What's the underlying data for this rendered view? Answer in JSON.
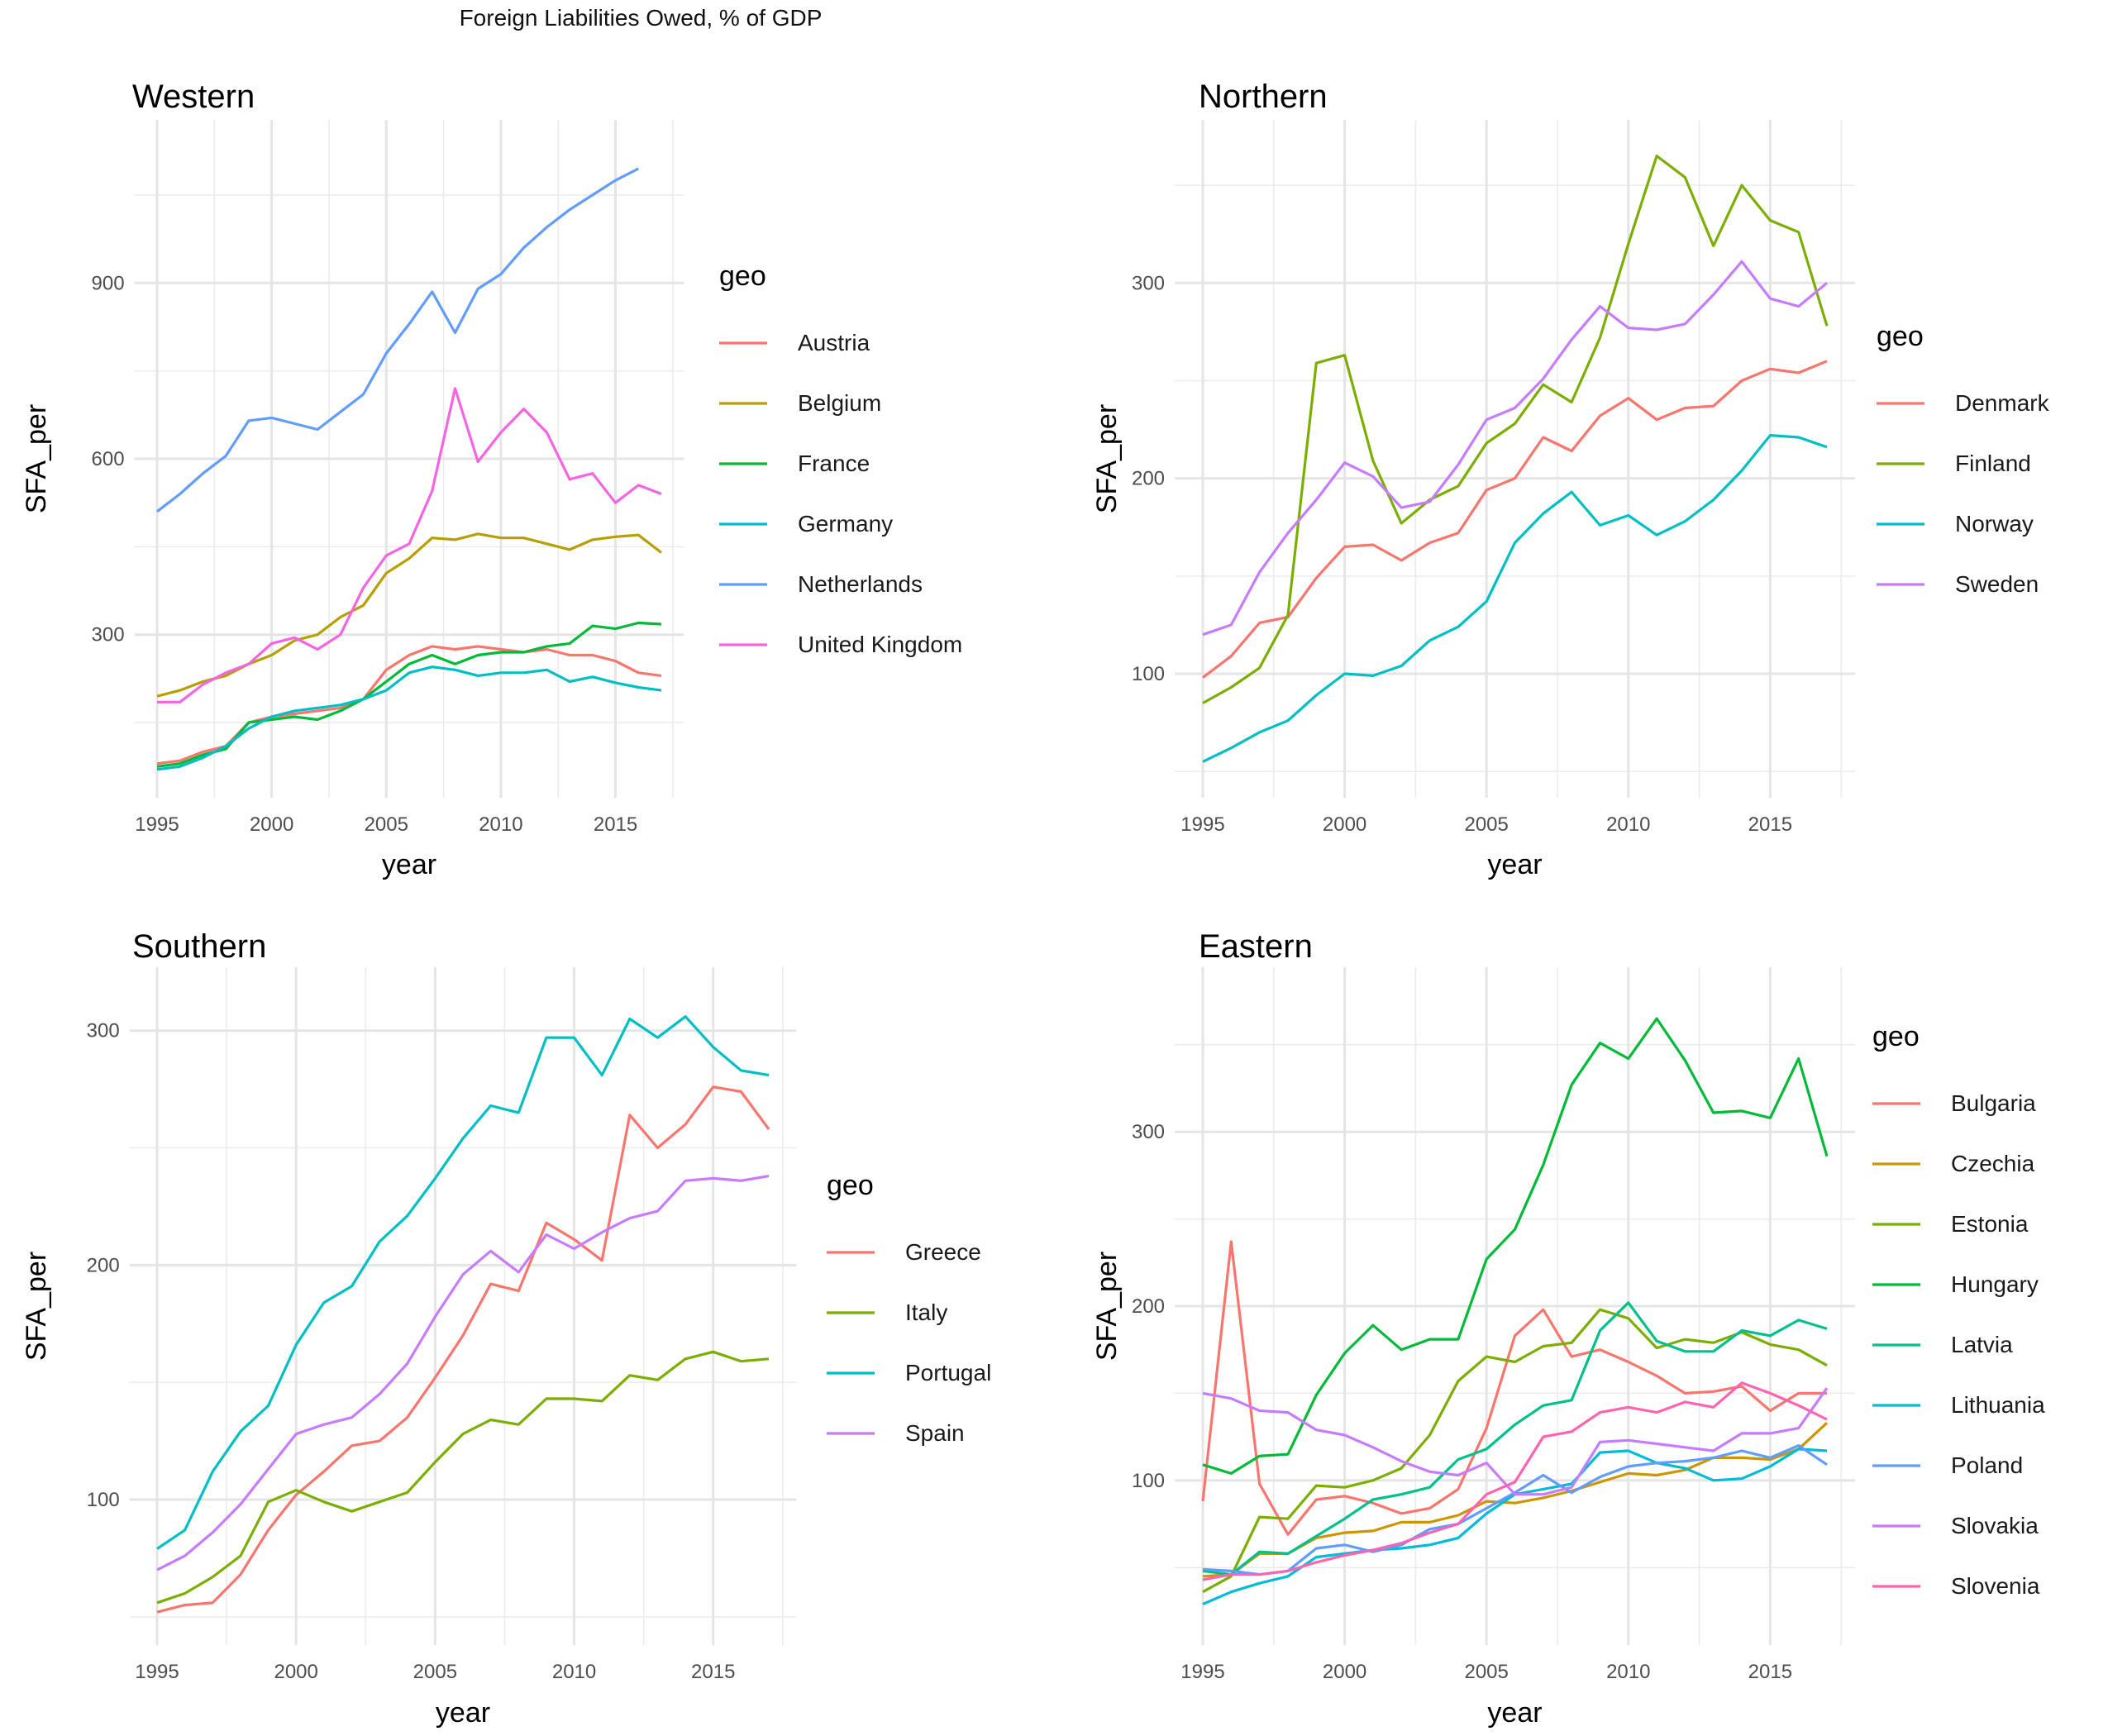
{
  "title": "Foreign Liabilities Owed, % of GDP",
  "chart_data": [
    {
      "type": "line",
      "title": "Western",
      "xlabel": "year",
      "ylabel": "SFA_per",
      "legend_title": "geo",
      "legend_position": "right",
      "xlim": [
        1995,
        2017
      ],
      "ylim": [
        50,
        1150
      ],
      "x_ticks": [
        1995,
        2000,
        2005,
        2010,
        2015
      ],
      "y_ticks": [
        300,
        600,
        900
      ],
      "x": [
        1995,
        1996,
        1997,
        1998,
        1999,
        2000,
        2001,
        2002,
        2003,
        2004,
        2005,
        2006,
        2007,
        2008,
        2009,
        2010,
        2011,
        2012,
        2013,
        2014,
        2015,
        2016,
        2017
      ],
      "series": [
        {
          "name": "Austria",
          "color": "#F8766D",
          "values": [
            80,
            85,
            100,
            110,
            150,
            160,
            165,
            170,
            175,
            190,
            240,
            265,
            280,
            275,
            280,
            275,
            270,
            275,
            265,
            265,
            255,
            235,
            230
          ]
        },
        {
          "name": "Belgium",
          "color": "#B79F00",
          "values": [
            195,
            205,
            220,
            230,
            250,
            265,
            290,
            300,
            330,
            350,
            405,
            430,
            465,
            462,
            472,
            465,
            465,
            455,
            445,
            462,
            467,
            470,
            440
          ]
        },
        {
          "name": "France",
          "color": "#00BA38",
          "values": [
            75,
            80,
            95,
            105,
            150,
            155,
            160,
            155,
            170,
            190,
            220,
            250,
            265,
            250,
            265,
            270,
            270,
            280,
            285,
            315,
            310,
            320,
            318
          ]
        },
        {
          "name": "Germany",
          "color": "#00BFC4",
          "values": [
            70,
            75,
            90,
            110,
            140,
            160,
            170,
            175,
            180,
            190,
            205,
            235,
            245,
            240,
            230,
            235,
            235,
            240,
            220,
            228,
            218,
            210,
            205
          ]
        },
        {
          "name": "Netherlands",
          "color": "#619CFF",
          "values": [
            510,
            540,
            575,
            605,
            665,
            670,
            660,
            650,
            680,
            710,
            780,
            830,
            885,
            815,
            890,
            915,
            960,
            995,
            1025,
            1050,
            1075,
            1095,
            null
          ]
        },
        {
          "name": "United Kingdom",
          "color": "#F564E3",
          "values": [
            185,
            185,
            215,
            235,
            250,
            285,
            295,
            275,
            300,
            380,
            435,
            455,
            545,
            720,
            595,
            645,
            685,
            645,
            565,
            575,
            525,
            555,
            540
          ]
        }
      ]
    },
    {
      "type": "line",
      "title": "Northern",
      "xlabel": "year",
      "ylabel": "SFA_per",
      "legend_title": "geo",
      "legend_position": "right",
      "xlim": [
        1995,
        2017
      ],
      "ylim": [
        45,
        375
      ],
      "x_ticks": [
        1995,
        2000,
        2005,
        2010,
        2015
      ],
      "y_ticks": [
        100,
        200,
        300
      ],
      "x": [
        1995,
        1996,
        1997,
        1998,
        1999,
        2000,
        2001,
        2002,
        2003,
        2004,
        2005,
        2006,
        2007,
        2008,
        2009,
        2010,
        2011,
        2012,
        2013,
        2014,
        2015,
        2016,
        2017
      ],
      "series": [
        {
          "name": "Denmark",
          "color": "#F8766D",
          "values": [
            98,
            109,
            126,
            129,
            149,
            165,
            166,
            158,
            167,
            172,
            194,
            200,
            221,
            214,
            232,
            241,
            230,
            236,
            237,
            250,
            256,
            254,
            260
          ]
        },
        {
          "name": "Finland",
          "color": "#7CAE00",
          "values": [
            85,
            93,
            103,
            130,
            259,
            263,
            209,
            177,
            189,
            196,
            218,
            228,
            248,
            239,
            272,
            320,
            365,
            354,
            319,
            350,
            332,
            326,
            278
          ]
        },
        {
          "name": "Norway",
          "color": "#00BFC4",
          "values": [
            55,
            62,
            70,
            76,
            89,
            100,
            99,
            104,
            117,
            124,
            137,
            167,
            182,
            193,
            176,
            181,
            171,
            178,
            189,
            204,
            222,
            221,
            216
          ]
        },
        {
          "name": "Sweden",
          "color": "#C77CFF",
          "values": [
            120,
            125,
            152,
            172,
            189,
            208,
            201,
            185,
            188,
            207,
            230,
            236,
            251,
            271,
            288,
            277,
            276,
            279,
            294,
            311,
            292,
            288,
            300
          ]
        }
      ]
    },
    {
      "type": "line",
      "title": "Southern",
      "xlabel": "year",
      "ylabel": "SFA_per",
      "legend_title": "geo",
      "legend_position": "right",
      "xlim": [
        1995,
        2017
      ],
      "ylim": [
        45,
        320
      ],
      "x_ticks": [
        1995,
        2000,
        2005,
        2010,
        2015
      ],
      "y_ticks": [
        100,
        200,
        300
      ],
      "x": [
        1995,
        1996,
        1997,
        1998,
        1999,
        2000,
        2001,
        2002,
        2003,
        2004,
        2005,
        2006,
        2007,
        2008,
        2009,
        2010,
        2011,
        2012,
        2013,
        2014,
        2015,
        2016,
        2017
      ],
      "series": [
        {
          "name": "Greece",
          "color": "#F8766D",
          "values": [
            52,
            55,
            56,
            68,
            87,
            102,
            112,
            123,
            125,
            135,
            152,
            170,
            192,
            189,
            218,
            211,
            202,
            264,
            250,
            260,
            276,
            274,
            258
          ]
        },
        {
          "name": "Italy",
          "color": "#7CAE00",
          "values": [
            56,
            60,
            67,
            76,
            99,
            104,
            99,
            95,
            99,
            103,
            116,
            128,
            134,
            132,
            143,
            143,
            142,
            153,
            151,
            160,
            163,
            159,
            160
          ]
        },
        {
          "name": "Portugal",
          "color": "#00BFC4",
          "values": [
            79,
            87,
            112,
            129,
            140,
            166,
            184,
            191,
            210,
            221,
            237,
            254,
            268,
            265,
            297,
            297,
            281,
            305,
            297,
            306,
            293,
            283,
            281
          ]
        },
        {
          "name": "Spain",
          "color": "#C77CFF",
          "values": [
            70,
            76,
            86,
            98,
            113,
            128,
            132,
            135,
            145,
            158,
            178,
            196,
            206,
            197,
            213,
            207,
            214,
            220,
            223,
            236,
            237,
            236,
            238
          ]
        }
      ]
    },
    {
      "type": "line",
      "title": "Eastern",
      "xlabel": "year",
      "ylabel": "SFA_per",
      "legend_title": "geo",
      "legend_position": "right",
      "xlim": [
        1995,
        2017
      ],
      "ylim": [
        15,
        385
      ],
      "x_ticks": [
        1995,
        2000,
        2005,
        2010,
        2015
      ],
      "y_ticks": [
        100,
        200,
        300
      ],
      "x": [
        1995,
        1996,
        1997,
        1998,
        1999,
        2000,
        2001,
        2002,
        2003,
        2004,
        2005,
        2006,
        2007,
        2008,
        2009,
        2010,
        2011,
        2012,
        2013,
        2014,
        2015,
        2016,
        2017
      ],
      "series": [
        {
          "name": "Bulgaria",
          "color": "#F8766D",
          "values": [
            88,
            237,
            98,
            69,
            89,
            91,
            87,
            81,
            84,
            95,
            130,
            183,
            198,
            171,
            175,
            168,
            160,
            150,
            151,
            154,
            140,
            150,
            150
          ]
        },
        {
          "name": "Czechia",
          "color": "#CD9600",
          "values": [
            45,
            46,
            58,
            58,
            67,
            70,
            71,
            76,
            76,
            80,
            88,
            87,
            90,
            94,
            99,
            104,
            103,
            106,
            113,
            113,
            112,
            118,
            133
          ]
        },
        {
          "name": "Estonia",
          "color": "#7CAE00",
          "values": [
            36,
            45,
            79,
            78,
            97,
            96,
            100,
            107,
            126,
            157,
            171,
            168,
            177,
            179,
            198,
            193,
            176,
            181,
            179,
            185,
            178,
            175,
            166
          ]
        },
        {
          "name": "Hungary",
          "color": "#00BA38",
          "values": [
            109,
            104,
            114,
            115,
            149,
            173,
            189,
            175,
            181,
            181,
            227,
            244,
            281,
            327,
            351,
            342,
            365,
            341,
            311,
            312,
            308,
            342,
            286
          ]
        },
        {
          "name": "Latvia",
          "color": "#00C08B",
          "values": [
            48,
            46,
            59,
            58,
            68,
            78,
            89,
            92,
            96,
            112,
            118,
            132,
            143,
            146,
            186,
            202,
            180,
            174,
            174,
            186,
            183,
            192,
            187
          ]
        },
        {
          "name": "Lithuania",
          "color": "#00BCD8",
          "values": [
            29,
            36,
            41,
            45,
            56,
            58,
            60,
            61,
            63,
            67,
            81,
            92,
            95,
            98,
            116,
            117,
            110,
            107,
            100,
            101,
            108,
            118,
            117
          ]
        },
        {
          "name": "Poland",
          "color": "#619CFF",
          "values": [
            49,
            48,
            46,
            48,
            61,
            63,
            59,
            63,
            72,
            75,
            84,
            93,
            103,
            93,
            102,
            108,
            110,
            111,
            113,
            117,
            113,
            120,
            109
          ]
        },
        {
          "name": "Slovakia",
          "color": "#C77CFF",
          "values": [
            150,
            147,
            140,
            139,
            129,
            126,
            119,
            111,
            105,
            103,
            110,
            92,
            92,
            96,
            122,
            123,
            121,
            119,
            117,
            127,
            127,
            130,
            153
          ]
        },
        {
          "name": "Slovenia",
          "color": "#FF64B0",
          "values": [
            43,
            46,
            46,
            48,
            53,
            57,
            60,
            64,
            70,
            75,
            92,
            99,
            125,
            128,
            139,
            142,
            139,
            145,
            142,
            156,
            150,
            143,
            135
          ]
        }
      ]
    }
  ]
}
